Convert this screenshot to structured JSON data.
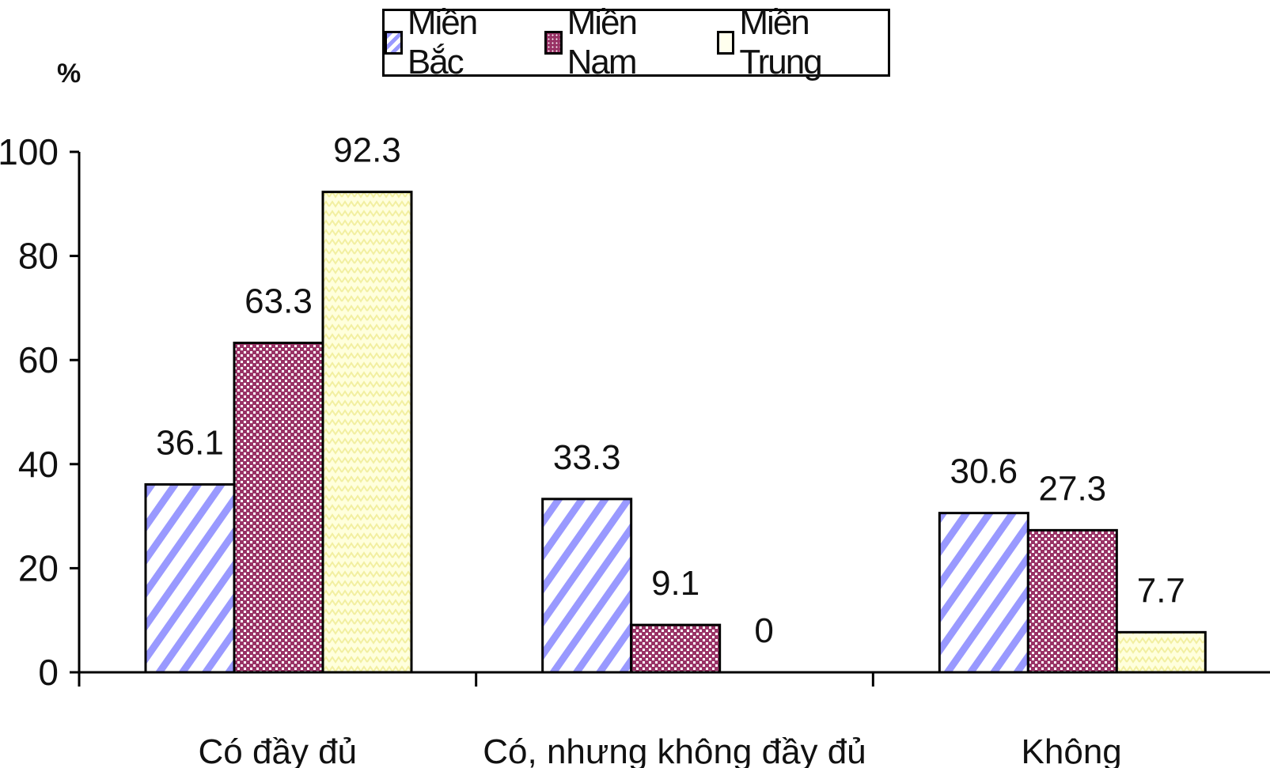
{
  "chart_data": {
    "type": "bar",
    "title": "",
    "ylabel": "%",
    "xlabel": "",
    "ylim": [
      0,
      100
    ],
    "yticks": [
      0,
      20,
      40,
      60,
      80,
      100
    ],
    "categories": [
      "Có đầy đủ",
      "Có, nhưng không đầy đủ",
      "Không"
    ],
    "series": [
      {
        "name": "Miền Bắc",
        "values": [
          36.1,
          33.3,
          30.6
        ],
        "color": "#9999ff",
        "pattern": "diagonal-stripes"
      },
      {
        "name": "Miền Nam",
        "values": [
          63.3,
          9.1,
          27.3
        ],
        "color": "#993366",
        "pattern": "checker"
      },
      {
        "name": "Miền Trung",
        "values": [
          92.3,
          0,
          7.7
        ],
        "color": "#ffffcc",
        "pattern": "zigzag"
      }
    ],
    "value_labels": [
      [
        "36.1",
        "33.3",
        "30.6"
      ],
      [
        "63.3",
        "9.1",
        "27.3"
      ],
      [
        "92.3",
        "0",
        "7.7"
      ]
    ],
    "legend_position": "top-center",
    "grid": false
  }
}
